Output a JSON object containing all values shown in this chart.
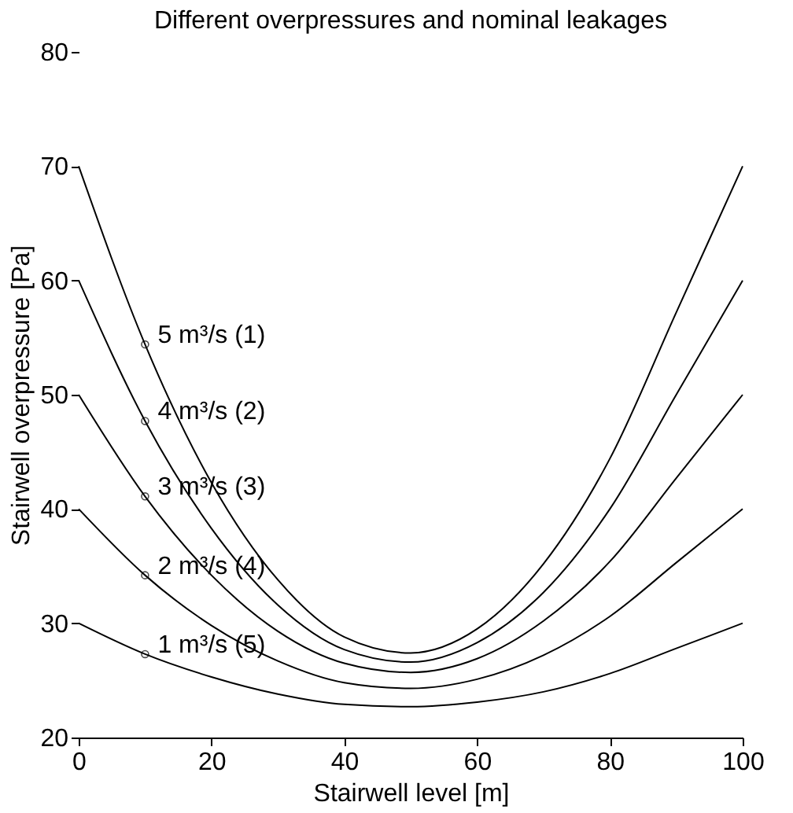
{
  "chart_data": {
    "type": "line",
    "title": "Different overpressures and nominal leakages",
    "xlabel": "Stairwell level [m]",
    "ylabel": "Stairwell overpressure [Pa]",
    "x": [
      0,
      10,
      20,
      30,
      40,
      50,
      60,
      70,
      80,
      90,
      100
    ],
    "series": [
      {
        "name": "5 m³/s  (1)",
        "color": "#000000",
        "values": [
          70,
          54.4,
          42.3,
          33.8,
          28.8,
          27.4,
          29.5,
          35.2,
          44.4,
          57.2,
          70
        ]
      },
      {
        "name": "4 m³/s  (2)",
        "color": "#000000",
        "values": [
          60,
          47.7,
          38.3,
          31.6,
          27.7,
          26.6,
          28.3,
          32.7,
          40.0,
          50.0,
          60
        ]
      },
      {
        "name": "3 m³/s  (3)",
        "color": "#000000",
        "values": [
          50,
          41.1,
          34.2,
          29.3,
          26.5,
          25.7,
          26.9,
          30.2,
          35.4,
          42.7,
          50
        ]
      },
      {
        "name": "2 m³/s  (4)",
        "color": "#000000",
        "values": [
          40,
          34.2,
          29.8,
          26.7,
          24.8,
          24.3,
          25.1,
          27.2,
          30.6,
          35.3,
          40
        ]
      },
      {
        "name": "1 m³/s  (5)",
        "color": "#000000",
        "values": [
          30,
          27.3,
          25.3,
          23.8,
          22.9,
          22.7,
          23.1,
          24.0,
          25.6,
          27.8,
          30
        ]
      }
    ],
    "xlim": [
      0,
      100
    ],
    "ylim": [
      20,
      80
    ],
    "xticks": [
      0,
      20,
      40,
      60,
      80,
      100
    ],
    "yticks": [
      20,
      30,
      40,
      50,
      60,
      70,
      80
    ],
    "grid": false,
    "legend": false,
    "line_style": "solid",
    "marker": "none"
  }
}
